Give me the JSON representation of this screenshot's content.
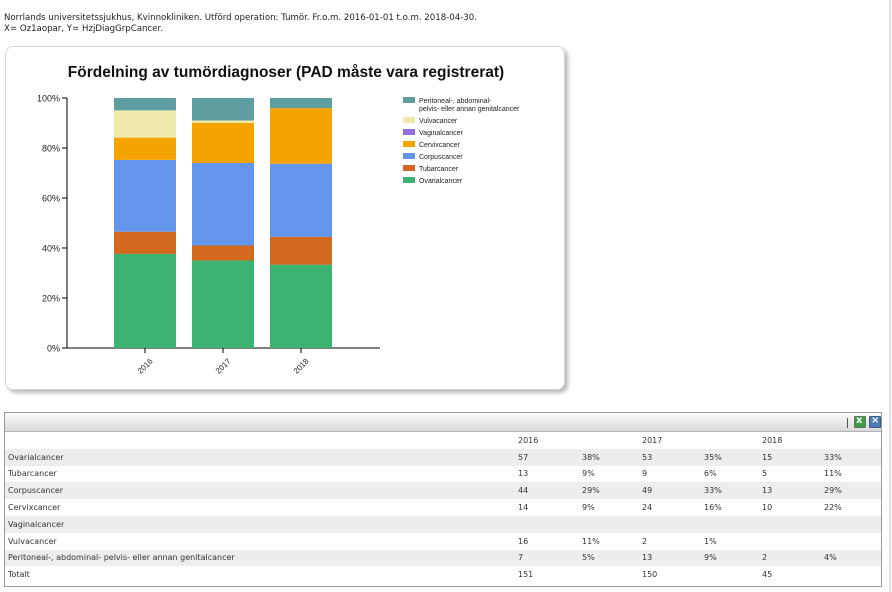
{
  "header": {
    "line1": "Norrlands universitetssjukhus, Kvinnokliniken. Utförd operation: Tumör. Fr.o.m. 2016-01-01 t.o.m. 2018-04-30.",
    "line2": "X= Oz1aopar, Y= HzjDiagGrpCancer."
  },
  "chart_data": {
    "type": "bar",
    "stacked": true,
    "percent": true,
    "title": "Fördelning av tumördiagnoser (PAD måste vara registrerat)",
    "categories": [
      "2016",
      "2017",
      "2018"
    ],
    "ylim": [
      0,
      100
    ],
    "yticks": [
      "0%",
      "20%",
      "40%",
      "60%",
      "80%",
      "100%"
    ],
    "legend_position": "right",
    "series": [
      {
        "name": "Ovarialcancer",
        "color": "#3cb371",
        "values": [
          38,
          35,
          33
        ]
      },
      {
        "name": "Tubarcancer",
        "color": "#d2691e",
        "values": [
          9,
          6,
          11
        ]
      },
      {
        "name": "Corpuscancer",
        "color": "#6495ed",
        "values": [
          29,
          33,
          29
        ]
      },
      {
        "name": "Cervixcancer",
        "color": "#f5a300",
        "values": [
          9,
          16,
          22
        ]
      },
      {
        "name": "Vaginalcancer",
        "color": "#9370db",
        "values": [
          0,
          0,
          0
        ]
      },
      {
        "name": "Vulvacancer",
        "color": "#eee8aa",
        "values": [
          11,
          1,
          0
        ]
      },
      {
        "name": "Peritoneal-, abdominal-\npelvis- eller annan genitalcancer",
        "color": "#5f9ea0",
        "values": [
          5,
          9,
          4
        ]
      }
    ]
  },
  "table": {
    "years": [
      "2016",
      "2017",
      "2018"
    ],
    "rows": [
      {
        "label": "Ovarialcancer",
        "values": [
          "57",
          "38%",
          "53",
          "35%",
          "15",
          "33%"
        ]
      },
      {
        "label": "Tubarcancer",
        "values": [
          "13",
          "9%",
          "9",
          "6%",
          "5",
          "11%"
        ]
      },
      {
        "label": "Corpuscancer",
        "values": [
          "44",
          "29%",
          "49",
          "33%",
          "13",
          "29%"
        ]
      },
      {
        "label": "Cervixcancer",
        "values": [
          "14",
          "9%",
          "24",
          "16%",
          "10",
          "22%"
        ]
      },
      {
        "label": "Vaginalcancer",
        "values": [
          "",
          "",
          "",
          "",
          "",
          ""
        ]
      },
      {
        "label": "Vulvacancer",
        "values": [
          "16",
          "11%",
          "2",
          "1%",
          "",
          ""
        ]
      },
      {
        "label": "Peritoneal-, abdominal- pelvis- eller annan genitalcancer",
        "values": [
          "7",
          "5%",
          "13",
          "9%",
          "2",
          "4%"
        ]
      },
      {
        "label": "Totalt",
        "values": [
          "151",
          "",
          "150",
          "",
          "45",
          ""
        ]
      }
    ]
  },
  "toolbar": {
    "excel_icon": "excel-export-icon",
    "close_icon": "close-icon"
  }
}
